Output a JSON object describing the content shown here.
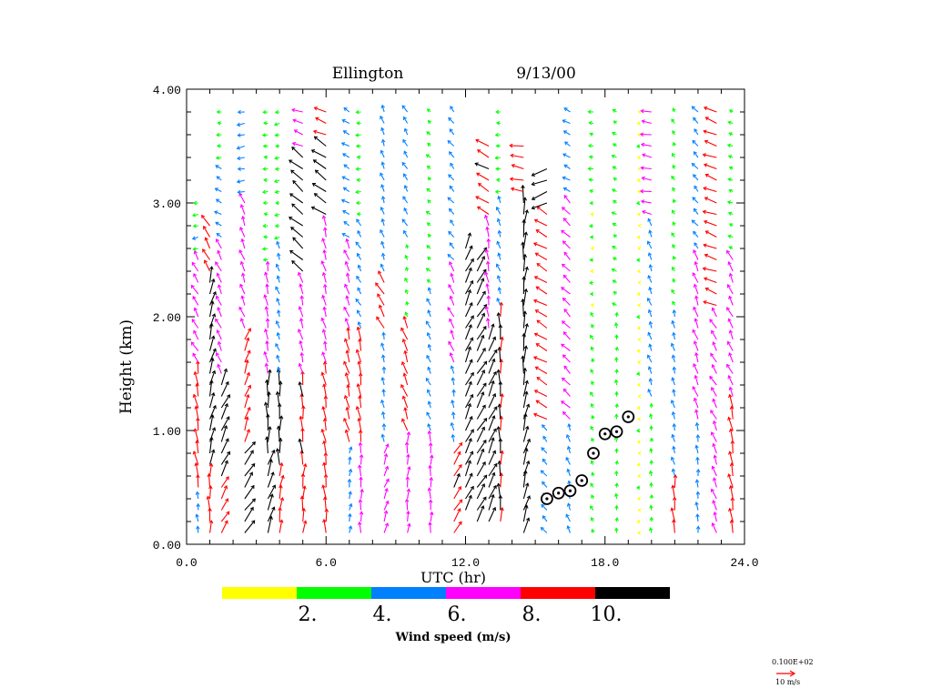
{
  "chart_data": {
    "type": "wind-profile",
    "station": "Ellington",
    "date": "9/13/00",
    "xlabel": "UTC (hr)",
    "ylabel": "Height (km)",
    "xlim": [
      0,
      24
    ],
    "ylim": [
      0,
      4
    ],
    "x_ticks": [
      "0.0",
      "6.0",
      "12.0",
      "18.0",
      "24.0"
    ],
    "y_ticks": [
      "0.00",
      "1.00",
      "2.00",
      "3.00",
      "4.00"
    ],
    "colorbar": {
      "label": "Wind speed (m/s)",
      "bins": [
        {
          "range": [
            0,
            2
          ],
          "color": "#ffff00"
        },
        {
          "range": [
            2,
            4
          ],
          "color": "#00ff00"
        },
        {
          "range": [
            4,
            6
          ],
          "color": "#0080ff"
        },
        {
          "range": [
            6,
            8
          ],
          "color": "#ff00ff"
        },
        {
          "range": [
            8,
            10
          ],
          "color": "#ff0000"
        },
        {
          "range": [
            10,
            12
          ],
          "color": "#000000"
        }
      ],
      "tick_labels": [
        "2.",
        "4.",
        "6.",
        "8.",
        "10."
      ]
    },
    "reference_vector": {
      "label": "0.100E+02",
      "units_label": "10 m/s",
      "speed": 10,
      "color": "#ff0000"
    },
    "mixing_height_points": [
      {
        "x": 15.5,
        "y": 0.4
      },
      {
        "x": 16.0,
        "y": 0.45
      },
      {
        "x": 16.5,
        "y": 0.47
      },
      {
        "x": 17.0,
        "y": 0.56
      },
      {
        "x": 17.5,
        "y": 0.8
      },
      {
        "x": 18.0,
        "y": 0.97
      },
      {
        "x": 18.5,
        "y": 0.99
      },
      {
        "x": 19.0,
        "y": 1.12
      }
    ],
    "profiles": [
      {
        "t": 0.5,
        "top": 3.0,
        "segs": [
          [
            0.1,
            0.45,
            4.5,
            95
          ],
          [
            0.45,
            1.5,
            9.0,
            100
          ],
          [
            1.5,
            2.5,
            7.0,
            120
          ],
          [
            2.5,
            3.0,
            3.5,
            190
          ]
        ]
      },
      {
        "t": 1.0,
        "top": 2.8,
        "segs": [
          [
            0.1,
            0.6,
            9.0,
            90
          ],
          [
            0.6,
            2.3,
            10.5,
            75
          ],
          [
            2.3,
            2.8,
            8.5,
            120
          ]
        ]
      },
      {
        "t": 1.5,
        "top": 3.8,
        "segs": [
          [
            0.1,
            0.5,
            9.0,
            60
          ],
          [
            0.5,
            1.4,
            11.0,
            65
          ],
          [
            1.4,
            2.6,
            7.0,
            115
          ],
          [
            2.6,
            3.3,
            4.5,
            150
          ],
          [
            3.3,
            3.8,
            3.0,
            180
          ]
        ]
      },
      {
        "t": 2.5,
        "top": 3.8,
        "segs": [
          [
            0.1,
            0.8,
            11.0,
            55
          ],
          [
            0.8,
            1.8,
            9.0,
            70
          ],
          [
            1.8,
            3.0,
            7.0,
            110
          ],
          [
            3.0,
            3.8,
            5.0,
            190
          ]
        ]
      },
      {
        "t": 3.5,
        "top": 3.8,
        "segs": [
          [
            0.1,
            0.7,
            11.0,
            70
          ],
          [
            0.7,
            1.4,
            11.0,
            90
          ],
          [
            1.4,
            2.4,
            7.0,
            100
          ],
          [
            2.4,
            3.8,
            3.0,
            180
          ]
        ]
      },
      {
        "t": 4.0,
        "top": 3.8,
        "segs": [
          [
            0.1,
            0.6,
            9.0,
            80
          ],
          [
            0.6,
            1.4,
            10.5,
            90
          ],
          [
            1.4,
            2.6,
            5.0,
            110
          ],
          [
            2.6,
            3.8,
            3.0,
            190
          ]
        ]
      },
      {
        "t": 5.0,
        "top": 3.8,
        "segs": [
          [
            0.1,
            0.6,
            9.0,
            85
          ],
          [
            0.6,
            1.4,
            9.5,
            95
          ],
          [
            1.4,
            2.3,
            7.0,
            105
          ],
          [
            2.3,
            3.4,
            10.5,
            140
          ],
          [
            3.4,
            3.8,
            7.0,
            160
          ]
        ]
      },
      {
        "t": 6.0,
        "top": 3.8,
        "segs": [
          [
            0.1,
            0.6,
            9.0,
            95
          ],
          [
            0.6,
            1.5,
            8.5,
            100
          ],
          [
            1.5,
            2.8,
            7.0,
            105
          ],
          [
            2.8,
            3.5,
            10.5,
            145
          ],
          [
            3.5,
            3.8,
            8.5,
            160
          ]
        ]
      },
      {
        "t": 7.0,
        "top": 3.8,
        "segs": [
          [
            0.1,
            0.8,
            5.0,
            80
          ],
          [
            0.8,
            1.8,
            8.5,
            105
          ],
          [
            1.8,
            2.6,
            7.0,
            110
          ],
          [
            2.6,
            3.8,
            5.0,
            150
          ]
        ]
      },
      {
        "t": 7.5,
        "top": 3.8,
        "segs": [
          [
            0.1,
            0.8,
            7.0,
            90
          ],
          [
            0.8,
            1.8,
            8.5,
            100
          ],
          [
            1.8,
            2.8,
            5.0,
            120
          ],
          [
            2.8,
            3.8,
            3.0,
            180
          ]
        ]
      },
      {
        "t": 8.5,
        "top": 3.8,
        "segs": [
          [
            0.1,
            0.8,
            7.0,
            70
          ],
          [
            0.8,
            1.8,
            5.0,
            100
          ],
          [
            1.8,
            2.3,
            9.0,
            120
          ],
          [
            2.3,
            3.8,
            5.0,
            110
          ]
        ]
      },
      {
        "t": 9.5,
        "top": 3.8,
        "segs": [
          [
            0.1,
            0.9,
            7.0,
            85
          ],
          [
            0.9,
            1.9,
            8.5,
            110
          ],
          [
            1.9,
            2.6,
            3.0,
            110
          ],
          [
            2.6,
            3.8,
            5.0,
            120
          ]
        ]
      },
      {
        "t": 10.5,
        "top": 3.8,
        "segs": [
          [
            0.1,
            0.9,
            7.0,
            90
          ],
          [
            0.9,
            2.2,
            5.0,
            115
          ],
          [
            2.2,
            3.8,
            3.0,
            140
          ]
        ]
      },
      {
        "t": 11.5,
        "top": 3.8,
        "segs": [
          [
            0.1,
            0.8,
            9.5,
            60
          ],
          [
            0.8,
            1.5,
            5.0,
            100
          ],
          [
            1.5,
            2.4,
            7.0,
            115
          ],
          [
            2.4,
            3.8,
            5.0,
            130
          ]
        ]
      },
      {
        "t": 12.0,
        "top": 2.6,
        "segs": [
          [
            0.3,
            2.6,
            10.5,
            65
          ]
        ]
      },
      {
        "t": 12.5,
        "top": 2.6,
        "segs": [
          [
            0.2,
            2.5,
            11.0,
            60
          ]
        ]
      },
      {
        "t": 13.0,
        "top": 3.5,
        "segs": [
          [
            0.2,
            1.8,
            10.5,
            65
          ],
          [
            1.8,
            2.8,
            7.0,
            100
          ],
          [
            2.8,
            3.5,
            9.5,
            150
          ]
        ]
      },
      {
        "t": 13.5,
        "top": 3.8,
        "segs": [
          [
            0.2,
            2.0,
            10.0,
            90
          ],
          [
            2.0,
            3.0,
            5.0,
            110
          ],
          [
            3.0,
            3.8,
            3.0,
            180
          ]
        ]
      },
      {
        "t": 14.5,
        "top": 3.5,
        "segs": [
          [
            0.1,
            1.2,
            11.0,
            75
          ],
          [
            1.2,
            3.0,
            11.5,
            85
          ],
          [
            3.0,
            3.5,
            9.0,
            170
          ]
        ]
      },
      {
        "t": 15.5,
        "top": 3.3,
        "segs": [
          [
            0.1,
            1.0,
            5.0,
            130
          ],
          [
            1.0,
            2.9,
            9.0,
            150
          ],
          [
            2.9,
            3.3,
            11.0,
            200
          ]
        ]
      },
      {
        "t": 16.5,
        "top": 3.8,
        "segs": [
          [
            0.1,
            1.0,
            5.0,
            110
          ],
          [
            1.0,
            3.0,
            7.0,
            135
          ],
          [
            3.0,
            3.8,
            5.0,
            150
          ]
        ]
      },
      {
        "t": 17.5,
        "top": 3.8,
        "segs": [
          [
            0.1,
            2.0,
            3.0,
            120
          ],
          [
            2.0,
            3.0,
            2.0,
            180
          ],
          [
            3.0,
            3.8,
            3.0,
            170
          ]
        ]
      },
      {
        "t": 18.5,
        "top": 3.8,
        "segs": [
          [
            0.1,
            2.0,
            3.0,
            90
          ],
          [
            2.0,
            3.8,
            3.0,
            150
          ]
        ]
      },
      {
        "t": 19.5,
        "top": 3.8,
        "segs": [
          [
            0.1,
            3.8,
            1.5,
            180
          ]
        ]
      },
      {
        "t": 20.0,
        "top": 3.8,
        "segs": [
          [
            0.1,
            1.2,
            3.0,
            95
          ],
          [
            1.2,
            2.8,
            5.0,
            110
          ],
          [
            2.8,
            3.8,
            7.0,
            170
          ]
        ]
      },
      {
        "t": 21.0,
        "top": 3.8,
        "segs": [
          [
            0.1,
            0.5,
            9.0,
            95
          ],
          [
            0.5,
            2.0,
            5.0,
            105
          ],
          [
            2.0,
            3.8,
            3.0,
            120
          ]
        ]
      },
      {
        "t": 22.0,
        "top": 3.8,
        "segs": [
          [
            0.1,
            1.0,
            5.0,
            95
          ],
          [
            1.0,
            2.5,
            7.0,
            110
          ],
          [
            2.5,
            3.8,
            5.0,
            130
          ]
        ]
      },
      {
        "t": 22.8,
        "top": 3.8,
        "segs": [
          [
            0.1,
            1.0,
            7.0,
            110
          ],
          [
            1.0,
            2.0,
            7.0,
            120
          ],
          [
            2.0,
            3.8,
            9.0,
            160
          ]
        ]
      },
      {
        "t": 23.5,
        "top": 3.8,
        "segs": [
          [
            0.1,
            1.2,
            9.0,
            100
          ],
          [
            1.2,
            2.5,
            7.0,
            115
          ],
          [
            2.5,
            3.8,
            3.0,
            160
          ]
        ]
      }
    ]
  }
}
